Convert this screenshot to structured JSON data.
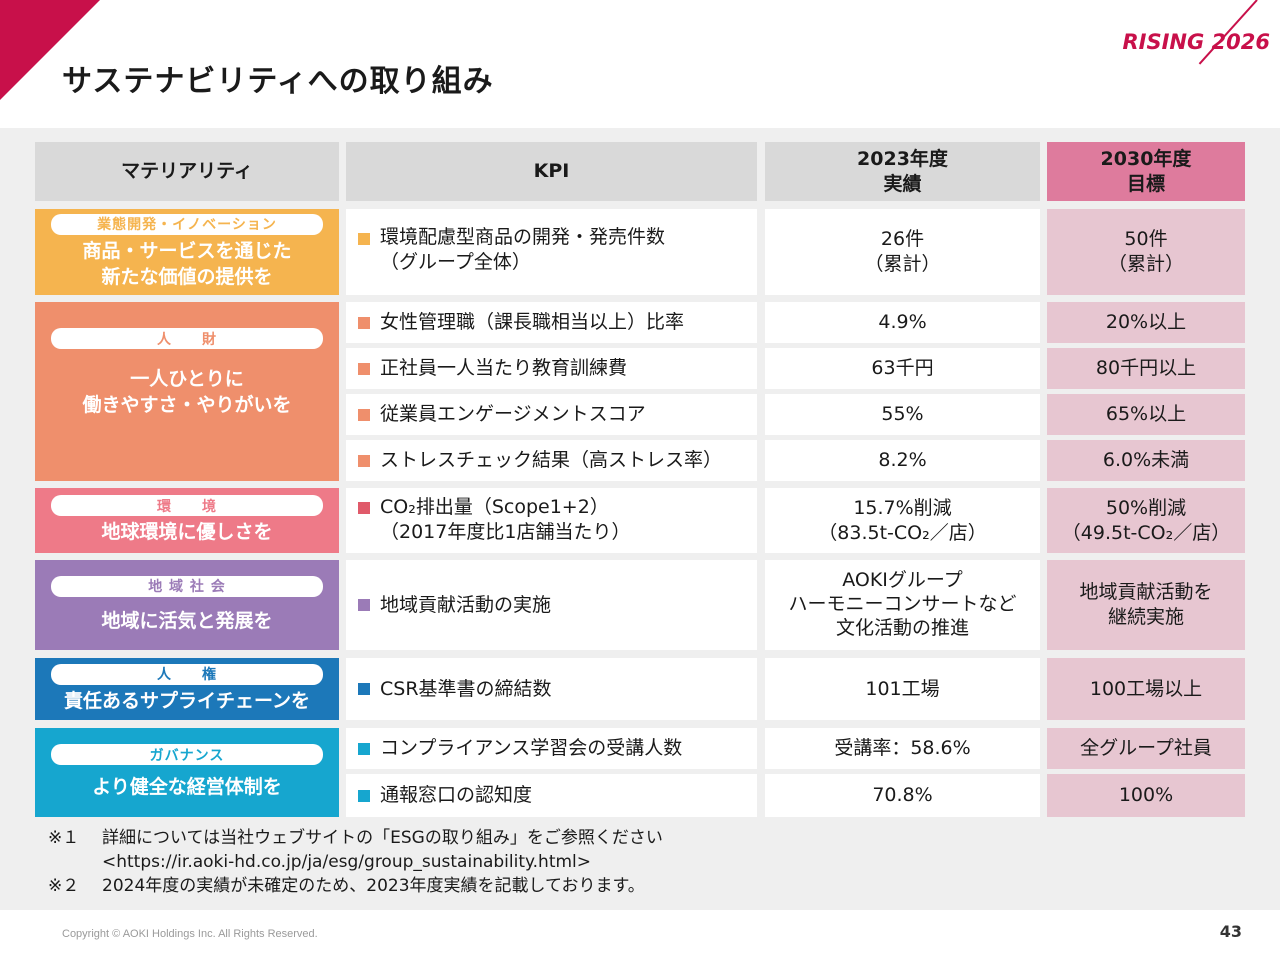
{
  "page": {
    "title": "サステナビリティへの取り組み",
    "brand": "RISING 2026",
    "copyright": "Copyright © AOKI Holdings Inc. All Rights Reserved.",
    "page_number": "43"
  },
  "table": {
    "headers": {
      "materiality": "マテリアリティ",
      "kpi": "KPI",
      "actual": "2023年度\n実績",
      "target": "2030年度\n目標"
    },
    "categories": [
      {
        "tag": "業態開発・イノベーション",
        "label": "商品・サービスを通じた\n新たな価値の提供を",
        "color": "#f5b44f"
      },
      {
        "tag": "人　　財",
        "label": "一人ひとりに\n働きやすさ・やりがいを",
        "color": "#ef8f6c"
      },
      {
        "tag": "環　　境",
        "label": "地球環境に優しさを",
        "color": "#ee7a88"
      },
      {
        "tag": "地 域 社 会",
        "label": "地域に活気と発展を",
        "color": "#9b7bb7"
      },
      {
        "tag": "人　　権",
        "label": "責任あるサプライチェーンを",
        "color": "#1c78b9"
      },
      {
        "tag": "ガバナンス",
        "label": "より健全な経営体制を",
        "color": "#16a6cf"
      }
    ],
    "rows": [
      {
        "kpi": "環境配慮型商品の開発・発売件数\n（グループ全体）",
        "actual": "26件\n（累計）",
        "target": "50件\n（累計）",
        "marker_color": "#f5b44f"
      },
      {
        "kpi": "女性管理職（課長職相当以上）比率",
        "actual": "4.9%",
        "target": "20%以上",
        "marker_color": "#ef8f6c"
      },
      {
        "kpi": "正社員一人当たり教育訓練費",
        "actual": "63千円",
        "target": "80千円以上",
        "marker_color": "#ef8f6c"
      },
      {
        "kpi": "従業員エンゲージメントスコア",
        "actual": "55%",
        "target": "65%以上",
        "marker_color": "#ef8f6c"
      },
      {
        "kpi": "ストレスチェック結果（高ストレス率）",
        "actual": "8.2%",
        "target": "6.0%未満",
        "marker_color": "#ef8f6c"
      },
      {
        "kpi": "CO₂排出量（Scope1+2）\n（2017年度比1店舗当たり）",
        "actual": "15.7%削減\n（83.5t-CO₂／店）",
        "target": "50%削減\n（49.5t-CO₂／店）",
        "marker_color": "#e05a6a"
      },
      {
        "kpi": "地域貢献活動の実施",
        "actual": "AOKIグループ\nハーモニーコンサートなど\n文化活動の推進",
        "target": "地域貢献活動を\n継続実施",
        "marker_color": "#9b7bb7"
      },
      {
        "kpi": "CSR基準書の締結数",
        "actual": "101工場",
        "target": "100工場以上",
        "marker_color": "#1c78b9"
      },
      {
        "kpi": "コンプライアンス学習会の受講人数",
        "actual": "受講率：58.6%",
        "target": "全グループ社員",
        "marker_color": "#16a6cf"
      },
      {
        "kpi": "通報窓口の認知度",
        "actual": "70.8%",
        "target": "100%",
        "marker_color": "#16a6cf"
      }
    ]
  },
  "notes": [
    {
      "mark": "※１",
      "text": "詳細については当社ウェブサイトの「ESGの取り組み」をご参照ください"
    },
    {
      "mark": "",
      "text": "<https://ir.aoki-hd.co.jp/ja/esg/group_sustainability.html>"
    },
    {
      "mark": "※２",
      "text": "2024年度の実績が未確定のため、2023年度実績を記載しております。"
    }
  ]
}
